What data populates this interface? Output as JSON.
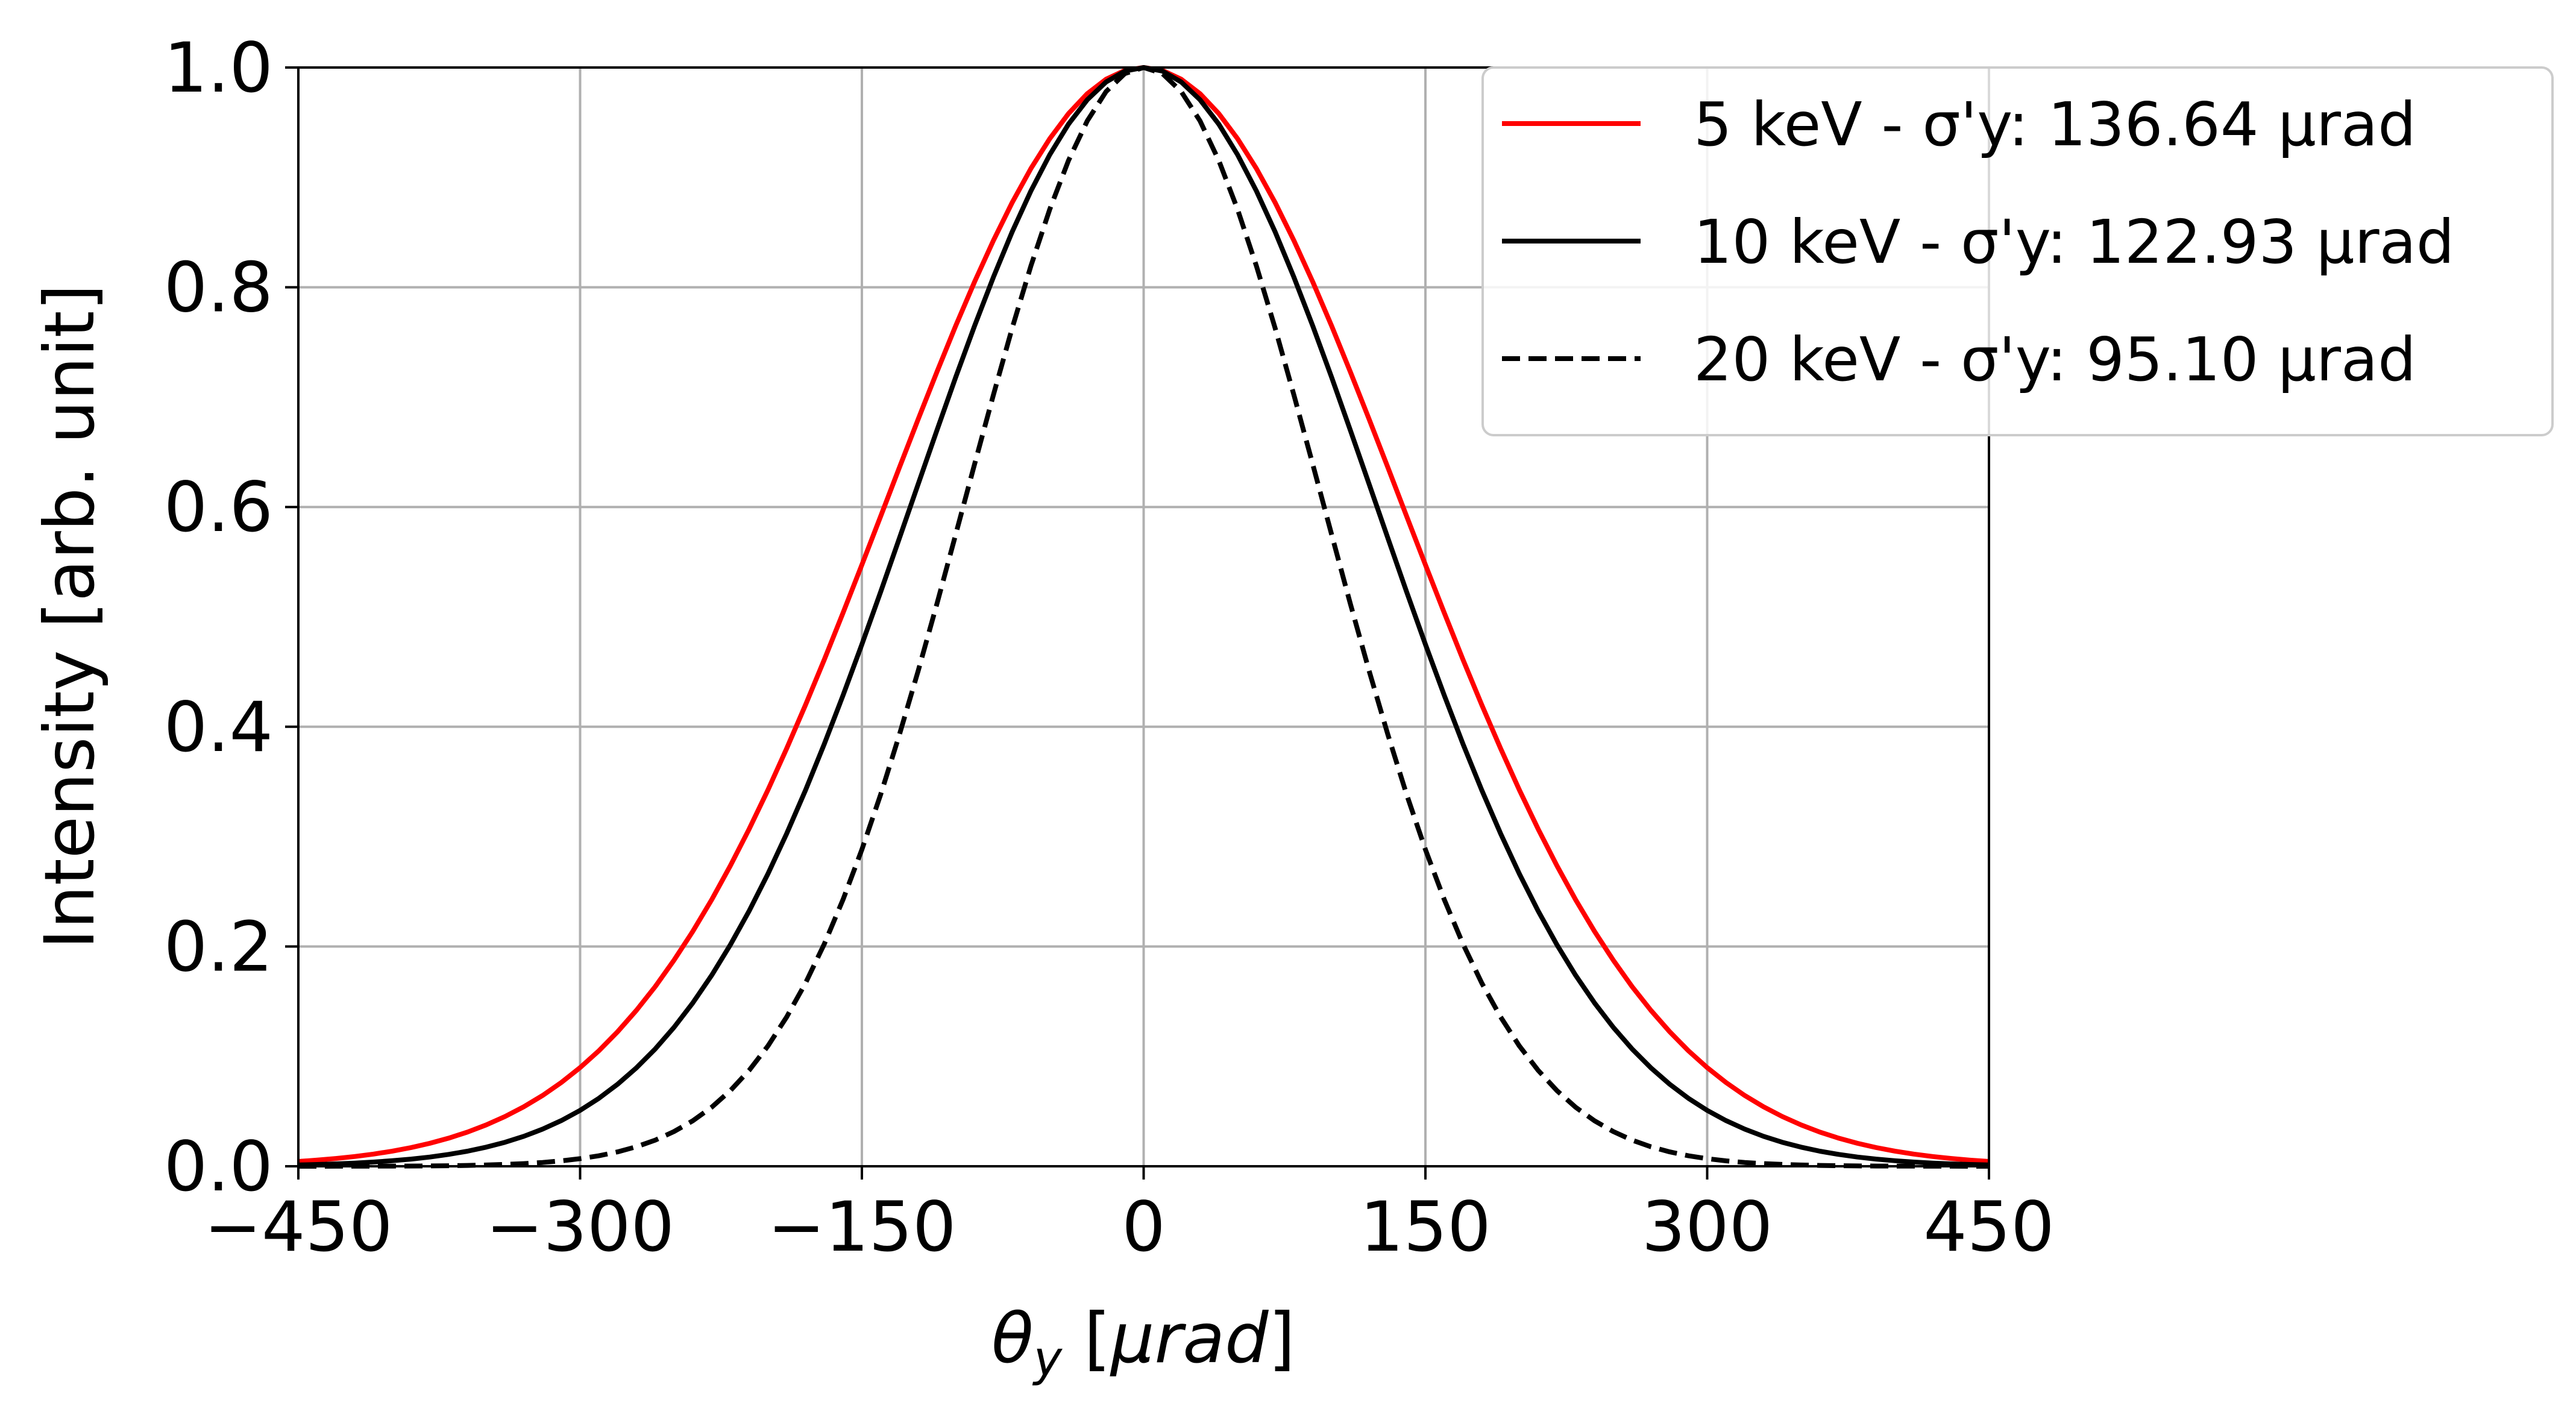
{
  "chart_data": {
    "type": "line",
    "xlabel": "θy [μrad]",
    "ylabel": "Intensity [arb. unit]",
    "xlim": [
      -450,
      450
    ],
    "ylim": [
      0.0,
      1.0
    ],
    "xticks": [
      "−450",
      "−300",
      "−150",
      "0",
      "150",
      "300",
      "450"
    ],
    "xtick_values": [
      -450,
      -300,
      -150,
      0,
      150,
      300,
      450
    ],
    "yticks": [
      "0.0",
      "0.2",
      "0.4",
      "0.6",
      "0.8",
      "1.0"
    ],
    "ytick_values": [
      0.0,
      0.2,
      0.4,
      0.6,
      0.8,
      1.0
    ],
    "grid": true,
    "legend_position": "top-right",
    "series": [
      {
        "name": "5 keV - σ'y: 136.64 μrad",
        "color": "#ff0000",
        "dash": "solid",
        "sigma": 136.64,
        "center": 0
      },
      {
        "name": "10 keV - σ'y: 122.93 μrad",
        "color": "#000000",
        "dash": "solid",
        "sigma": 122.93,
        "center": 0
      },
      {
        "name": "20 keV - σ'y: 95.10 μrad",
        "color": "#000000",
        "dash": "dashed",
        "sigma": 95.1,
        "center": 0
      }
    ],
    "x_sample_range": [
      -450,
      450
    ],
    "x_sample_step": 10
  }
}
